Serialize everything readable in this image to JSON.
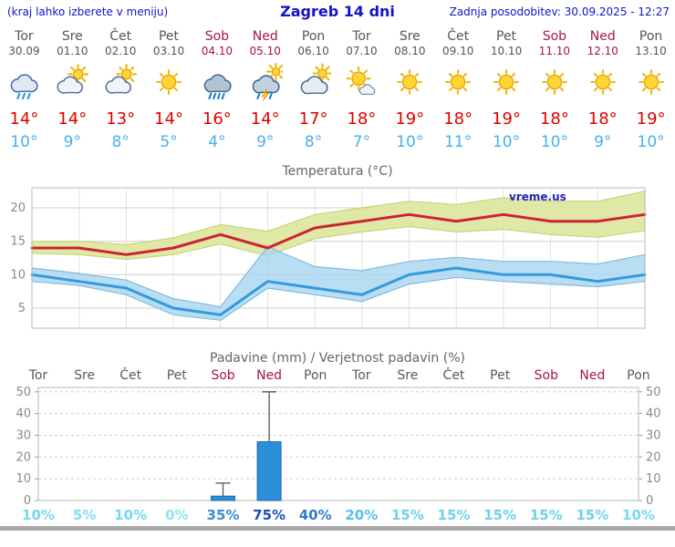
{
  "header": {
    "left_note": "(kraj lahko izberete v meniju)",
    "title": "Zagreb 14 dni",
    "updated": "Zadnja posodobitev: 30.09.2025 - 12:27"
  },
  "colors": {
    "accent_blue": "#1313cc",
    "weekday": "#555555",
    "weekend": "#a81448",
    "max_temp": "#e00000",
    "min_temp": "#4aaef0",
    "bar_fill": "#2a8fd8"
  },
  "days": [
    {
      "name": "Tor",
      "date": "30.09",
      "icon": "rain-cloud-icon",
      "max": "14°",
      "min": "10°",
      "weekend": false
    },
    {
      "name": "Sre",
      "date": "01.10",
      "icon": "partly-cloudy-icon",
      "max": "14°",
      "min": "9°",
      "weekend": false
    },
    {
      "name": "Čet",
      "date": "02.10",
      "icon": "partly-cloudy-icon",
      "max": "13°",
      "min": "8°",
      "weekend": false
    },
    {
      "name": "Pet",
      "date": "03.10",
      "icon": "sunny-icon",
      "max": "14°",
      "min": "5°",
      "weekend": false
    },
    {
      "name": "Sob",
      "date": "04.10",
      "icon": "heavy-rain-icon",
      "max": "16°",
      "min": "4°",
      "weekend": true
    },
    {
      "name": "Ned",
      "date": "05.10",
      "icon": "storm-icon",
      "max": "14°",
      "min": "9°",
      "weekend": true
    },
    {
      "name": "Pon",
      "date": "06.10",
      "icon": "mostly-cloudy-icon",
      "max": "17°",
      "min": "8°",
      "weekend": false
    },
    {
      "name": "Tor",
      "date": "07.10",
      "icon": "mostly-sunny-icon",
      "max": "18°",
      "min": "7°",
      "weekend": false
    },
    {
      "name": "Sre",
      "date": "08.10",
      "icon": "sunny-icon",
      "max": "19°",
      "min": "10°",
      "weekend": false
    },
    {
      "name": "Čet",
      "date": "09.10",
      "icon": "sunny-icon",
      "max": "18°",
      "min": "11°",
      "weekend": false
    },
    {
      "name": "Pet",
      "date": "10.10",
      "icon": "sunny-icon",
      "max": "19°",
      "min": "10°",
      "weekend": false
    },
    {
      "name": "Sob",
      "date": "11.10",
      "icon": "sunny-icon",
      "max": "18°",
      "min": "10°",
      "weekend": true
    },
    {
      "name": "Ned",
      "date": "12.10",
      "icon": "sunny-icon",
      "max": "18°",
      "min": "9°",
      "weekend": true
    },
    {
      "name": "Pon",
      "date": "13.10",
      "icon": "sunny-icon",
      "max": "19°",
      "min": "10°",
      "weekend": false
    }
  ],
  "chart_data": [
    {
      "type": "area",
      "title": "Temperatura (°C)",
      "x_labels": [
        "Tor",
        "Sre",
        "Čet",
        "Pet",
        "Sob",
        "Ned",
        "Pon",
        "Tor",
        "Sre",
        "Čet",
        "Pet",
        "Sob",
        "Ned",
        "Pon"
      ],
      "ylim": [
        2,
        23
      ],
      "yticks": [
        5,
        10,
        15,
        20
      ],
      "grid": true,
      "watermark": "vreme.us",
      "series": [
        {
          "name": "max-temp",
          "color": "#cc2233",
          "band_color": "#dde8a0",
          "band_edge": "#c3d67c",
          "values": [
            14,
            14,
            13,
            14,
            16,
            14,
            17,
            18,
            19,
            18,
            19,
            18,
            18,
            19
          ],
          "band_upper": [
            15,
            15,
            14.5,
            15.5,
            17.5,
            16.5,
            19,
            20,
            21,
            20.5,
            21.5,
            21,
            21,
            22.5
          ],
          "band_lower": [
            13.2,
            13,
            12.3,
            13,
            14.6,
            12.8,
            15.4,
            16.4,
            17.2,
            16.4,
            16.8,
            16,
            15.6,
            16.6
          ]
        },
        {
          "name": "min-temp",
          "color": "#3399dd",
          "band_color": "#a8d4f0",
          "band_edge": "#7fbde0",
          "values": [
            10,
            9,
            8,
            5,
            4,
            9,
            8,
            7,
            10,
            11,
            10,
            10,
            9,
            10
          ],
          "band_upper": [
            11,
            10.2,
            9.2,
            6.4,
            5.2,
            14.2,
            11.2,
            10.6,
            12,
            12.6,
            12,
            12,
            11.6,
            13
          ],
          "band_lower": [
            9,
            8.4,
            7,
            4,
            3.2,
            8,
            7,
            6,
            8.6,
            9.6,
            9,
            8.6,
            8.2,
            9
          ]
        }
      ]
    },
    {
      "type": "bar",
      "title": "Padavine (mm) / Verjetnost padavin (%)",
      "categories": [
        "Tor",
        "Sre",
        "Čet",
        "Pet",
        "Sob",
        "Ned",
        "Pon",
        "Tor",
        "Sre",
        "Čet",
        "Pet",
        "Sob",
        "Ned",
        "Pon"
      ],
      "weekend": [
        false,
        false,
        false,
        false,
        true,
        true,
        false,
        false,
        false,
        false,
        false,
        true,
        true,
        false
      ],
      "values": [
        0,
        0,
        0,
        0,
        2,
        27,
        0,
        0,
        0,
        0,
        0,
        0,
        0,
        0
      ],
      "whiskers": [
        0,
        0,
        0,
        0,
        8,
        50,
        0,
        0,
        0,
        0,
        0,
        0,
        0,
        0
      ],
      "ylim": [
        0,
        52
      ],
      "yticks": [
        0,
        10,
        20,
        30,
        40,
        50
      ],
      "probabilities": [
        {
          "label": "10%",
          "color": "#74d9ef"
        },
        {
          "label": "5%",
          "color": "#80dff2"
        },
        {
          "label": "10%",
          "color": "#74d9ef"
        },
        {
          "label": "0%",
          "color": "#8ce4f6"
        },
        {
          "label": "35%",
          "color": "#3a8bd0"
        },
        {
          "label": "75%",
          "color": "#1a50bc"
        },
        {
          "label": "40%",
          "color": "#2f7ccc"
        },
        {
          "label": "20%",
          "color": "#55c0e4"
        },
        {
          "label": "15%",
          "color": "#6cd2ec"
        },
        {
          "label": "15%",
          "color": "#6cd2ec"
        },
        {
          "label": "15%",
          "color": "#6cd2ec"
        },
        {
          "label": "15%",
          "color": "#6cd2ec"
        },
        {
          "label": "15%",
          "color": "#6cd2ec"
        },
        {
          "label": "10%",
          "color": "#74d9ef"
        }
      ]
    }
  ]
}
